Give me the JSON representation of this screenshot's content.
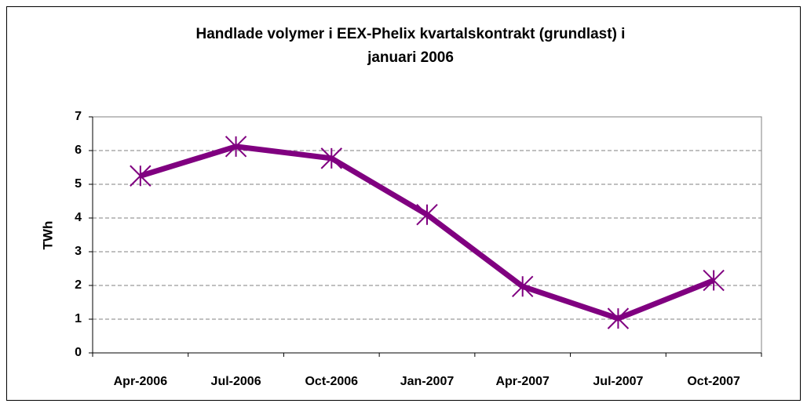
{
  "chart_data": {
    "type": "line",
    "title": [
      "Handlade volymer i EEX-Phelix kvartalskontrakt (grundlast) i",
      "januari 2006"
    ],
    "y_label": "TWh",
    "categories": [
      "Apr-2006",
      "Jul-2006",
      "Oct-2006",
      "Jan-2007",
      "Apr-2007",
      "Jul-2007",
      "Oct-2007"
    ],
    "series": [
      {
        "name": "TWh",
        "color": "#800080",
        "values": [
          5.25,
          6.12,
          5.77,
          4.1,
          1.97,
          1.02,
          2.15
        ]
      }
    ],
    "ylim": [
      0,
      7
    ],
    "yticks": [
      0,
      1,
      2,
      3,
      4,
      5,
      6,
      7
    ],
    "grid": true,
    "marker": "star"
  }
}
